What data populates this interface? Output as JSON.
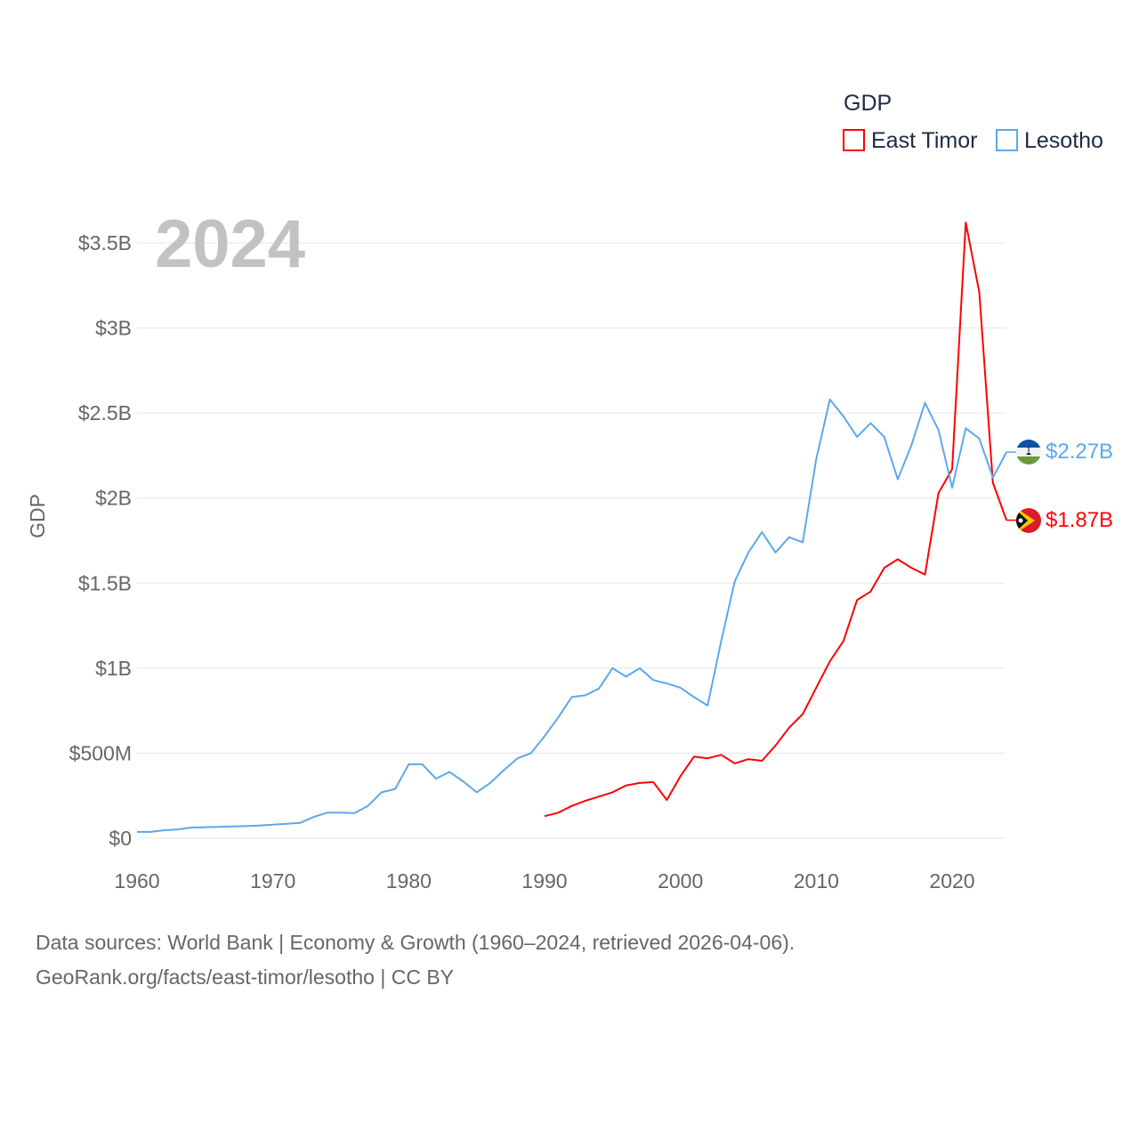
{
  "chart_data": {
    "type": "line",
    "title": "GDP",
    "year_label": "2024",
    "ylabel": "GDP",
    "xlabel": "",
    "xlim": [
      1960,
      2024
    ],
    "ylim": [
      0,
      3.5
    ],
    "x_ticks": [
      1960,
      1970,
      1980,
      1990,
      2000,
      2010,
      2020
    ],
    "y_ticks": [
      {
        "v": 0,
        "label": "$0"
      },
      {
        "v": 0.5,
        "label": "$500M"
      },
      {
        "v": 1,
        "label": "$1B"
      },
      {
        "v": 1.5,
        "label": "$1.5B"
      },
      {
        "v": 2,
        "label": "$2B"
      },
      {
        "v": 2.5,
        "label": "$2.5B"
      },
      {
        "v": 3,
        "label": "$3B"
      },
      {
        "v": 3.5,
        "label": "$3.5B"
      }
    ],
    "units": "USD billions",
    "grid": true,
    "legend_placement": "top-right",
    "series": [
      {
        "name": "East Timor",
        "color": "#ff0000",
        "end_label": "$1.87B",
        "flag": "east-timor",
        "start_year": 1990,
        "values": [
          0.13,
          0.15,
          0.19,
          0.22,
          0.245,
          0.27,
          0.31,
          0.325,
          0.33,
          0.225,
          0.365,
          0.48,
          0.47,
          0.49,
          0.44,
          0.465,
          0.455,
          0.545,
          0.65,
          0.73,
          0.885,
          1.04,
          1.16,
          1.4,
          1.45,
          1.59,
          1.64,
          1.59,
          1.55,
          2.03,
          2.17,
          3.62,
          3.21,
          2.09,
          1.87
        ]
      },
      {
        "name": "Lesotho",
        "color": "#5ca8ec",
        "end_label": "$2.27B",
        "flag": "lesotho",
        "start_year": 1960,
        "values": [
          0.037,
          0.037,
          0.047,
          0.052,
          0.063,
          0.065,
          0.067,
          0.069,
          0.071,
          0.075,
          0.08,
          0.085,
          0.09,
          0.125,
          0.15,
          0.15,
          0.148,
          0.19,
          0.27,
          0.29,
          0.435,
          0.435,
          0.35,
          0.39,
          0.335,
          0.27,
          0.325,
          0.4,
          0.47,
          0.5,
          0.6,
          0.71,
          0.83,
          0.84,
          0.88,
          1.0,
          0.95,
          1.0,
          0.93,
          0.91,
          0.885,
          0.83,
          0.78,
          1.16,
          1.51,
          1.68,
          1.8,
          1.68,
          1.77,
          1.74,
          2.23,
          2.58,
          2.48,
          2.36,
          2.44,
          2.36,
          2.11,
          2.31,
          2.56,
          2.4,
          2.06,
          2.41,
          2.35,
          2.12,
          2.27
        ]
      }
    ]
  },
  "footer": {
    "line1": "Data sources: World Bank | Economy & Growth (1960–2024, retrieved 2026-04-06).",
    "line2": "GeoRank.org/facts/east-timor/lesotho | CC BY"
  }
}
